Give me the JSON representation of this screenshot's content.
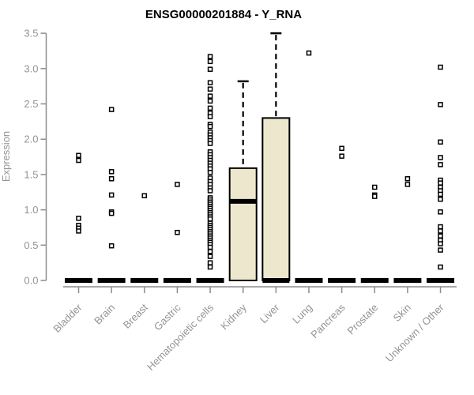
{
  "chart_data": {
    "type": "boxplot",
    "title": "ENSG00000201884 - Y_RNA",
    "ylabel": "Expression",
    "xlabel": "",
    "ylim": [
      0,
      3.5
    ],
    "yticks": [
      0,
      0.5,
      1,
      1.5,
      2,
      2.5,
      3,
      3.5
    ],
    "grid": "off",
    "legend": "none",
    "categories": [
      "Bladder",
      "Brain",
      "Breast",
      "Gastric",
      "Hematopoietic cells",
      "Kidney",
      "Liver",
      "Lung",
      "Pancreas",
      "Prostate",
      "Skin",
      "Unknown / Other"
    ],
    "boxes": [
      {
        "category": "Bladder",
        "q1": 0,
        "median": 0,
        "q3": 0,
        "whisker_low": 0,
        "whisker_high": 0,
        "outliers": [
          1.77,
          1.7,
          0.88,
          0.78,
          0.74,
          0.7
        ]
      },
      {
        "category": "Brain",
        "q1": 0,
        "median": 0,
        "q3": 0,
        "whisker_low": 0,
        "whisker_high": 0,
        "outliers": [
          2.42,
          1.54,
          1.44,
          1.21,
          0.97,
          0.95,
          0.49
        ]
      },
      {
        "category": "Breast",
        "q1": 0,
        "median": 0,
        "q3": 0,
        "whisker_low": 0,
        "whisker_high": 0,
        "outliers": [
          1.2
        ]
      },
      {
        "category": "Gastric",
        "q1": 0,
        "median": 0,
        "q3": 0,
        "whisker_low": 0,
        "whisker_high": 0,
        "outliers": [
          1.36,
          0.68
        ]
      },
      {
        "category": "Hematopoietic cells",
        "q1": 0,
        "median": 0,
        "q3": 0,
        "whisker_low": 0,
        "whisker_high": 0,
        "outliers": [
          3.17,
          3.1,
          2.99,
          2.8,
          2.71,
          2.61,
          2.54,
          2.44,
          2.37,
          2.32,
          2.21,
          2.18,
          2.1,
          2.06,
          2.02,
          1.98,
          1.94,
          1.82,
          1.78,
          1.74,
          1.7,
          1.66,
          1.62,
          1.58,
          1.53,
          1.45,
          1.4,
          1.36,
          1.31,
          1.27,
          1.17,
          1.14,
          1.11,
          1.08,
          1.05,
          1.02,
          0.99,
          0.96,
          0.93,
          0.9,
          0.87,
          0.81,
          0.78,
          0.75,
          0.72,
          0.69,
          0.66,
          0.63,
          0.6,
          0.57,
          0.54,
          0.51,
          0.47,
          0.41,
          0.34,
          0.25,
          0.19
        ]
      },
      {
        "category": "Kidney",
        "q1": 0,
        "median": 1.12,
        "q3": 1.59,
        "whisker_low": 0,
        "whisker_high": 2.82,
        "outliers": []
      },
      {
        "category": "Liver",
        "q1": 0,
        "median": 0,
        "q3": 2.3,
        "whisker_low": 0,
        "whisker_high": 3.5,
        "outliers": []
      },
      {
        "category": "Lung",
        "q1": 0,
        "median": 0,
        "q3": 0,
        "whisker_low": 0,
        "whisker_high": 0,
        "outliers": [
          3.22
        ]
      },
      {
        "category": "Pancreas",
        "q1": 0,
        "median": 0,
        "q3": 0,
        "whisker_low": 0,
        "whisker_high": 0,
        "outliers": [
          1.87,
          1.76
        ]
      },
      {
        "category": "Prostate",
        "q1": 0,
        "median": 0,
        "q3": 0,
        "whisker_low": 0,
        "whisker_high": 0,
        "outliers": [
          1.32,
          1.21,
          1.19
        ]
      },
      {
        "category": "Skin",
        "q1": 0,
        "median": 0,
        "q3": 0,
        "whisker_low": 0,
        "whisker_high": 0,
        "outliers": [
          1.44,
          1.36
        ]
      },
      {
        "category": "Unknown / Other",
        "q1": 0,
        "median": 0,
        "q3": 0,
        "whisker_low": 0,
        "whisker_high": 0,
        "outliers": [
          3.02,
          2.49,
          1.96,
          1.74,
          1.64,
          1.42,
          1.38,
          1.32,
          1.27,
          1.22,
          1.15,
          0.97,
          0.76,
          0.7,
          0.63,
          0.57,
          0.52,
          0.43,
          0.19
        ]
      }
    ],
    "colors": {
      "background": "#FFFFFF",
      "box_fill": "#EDE7CD",
      "box_stroke": "#000000",
      "median": "#000000",
      "whisker": "#000000",
      "outlier_stroke": "#000000",
      "outlier_fill": "#FFFFFF",
      "axis_line": "#8C8C8C",
      "axis_text": "#949494",
      "title": "#000000"
    }
  }
}
